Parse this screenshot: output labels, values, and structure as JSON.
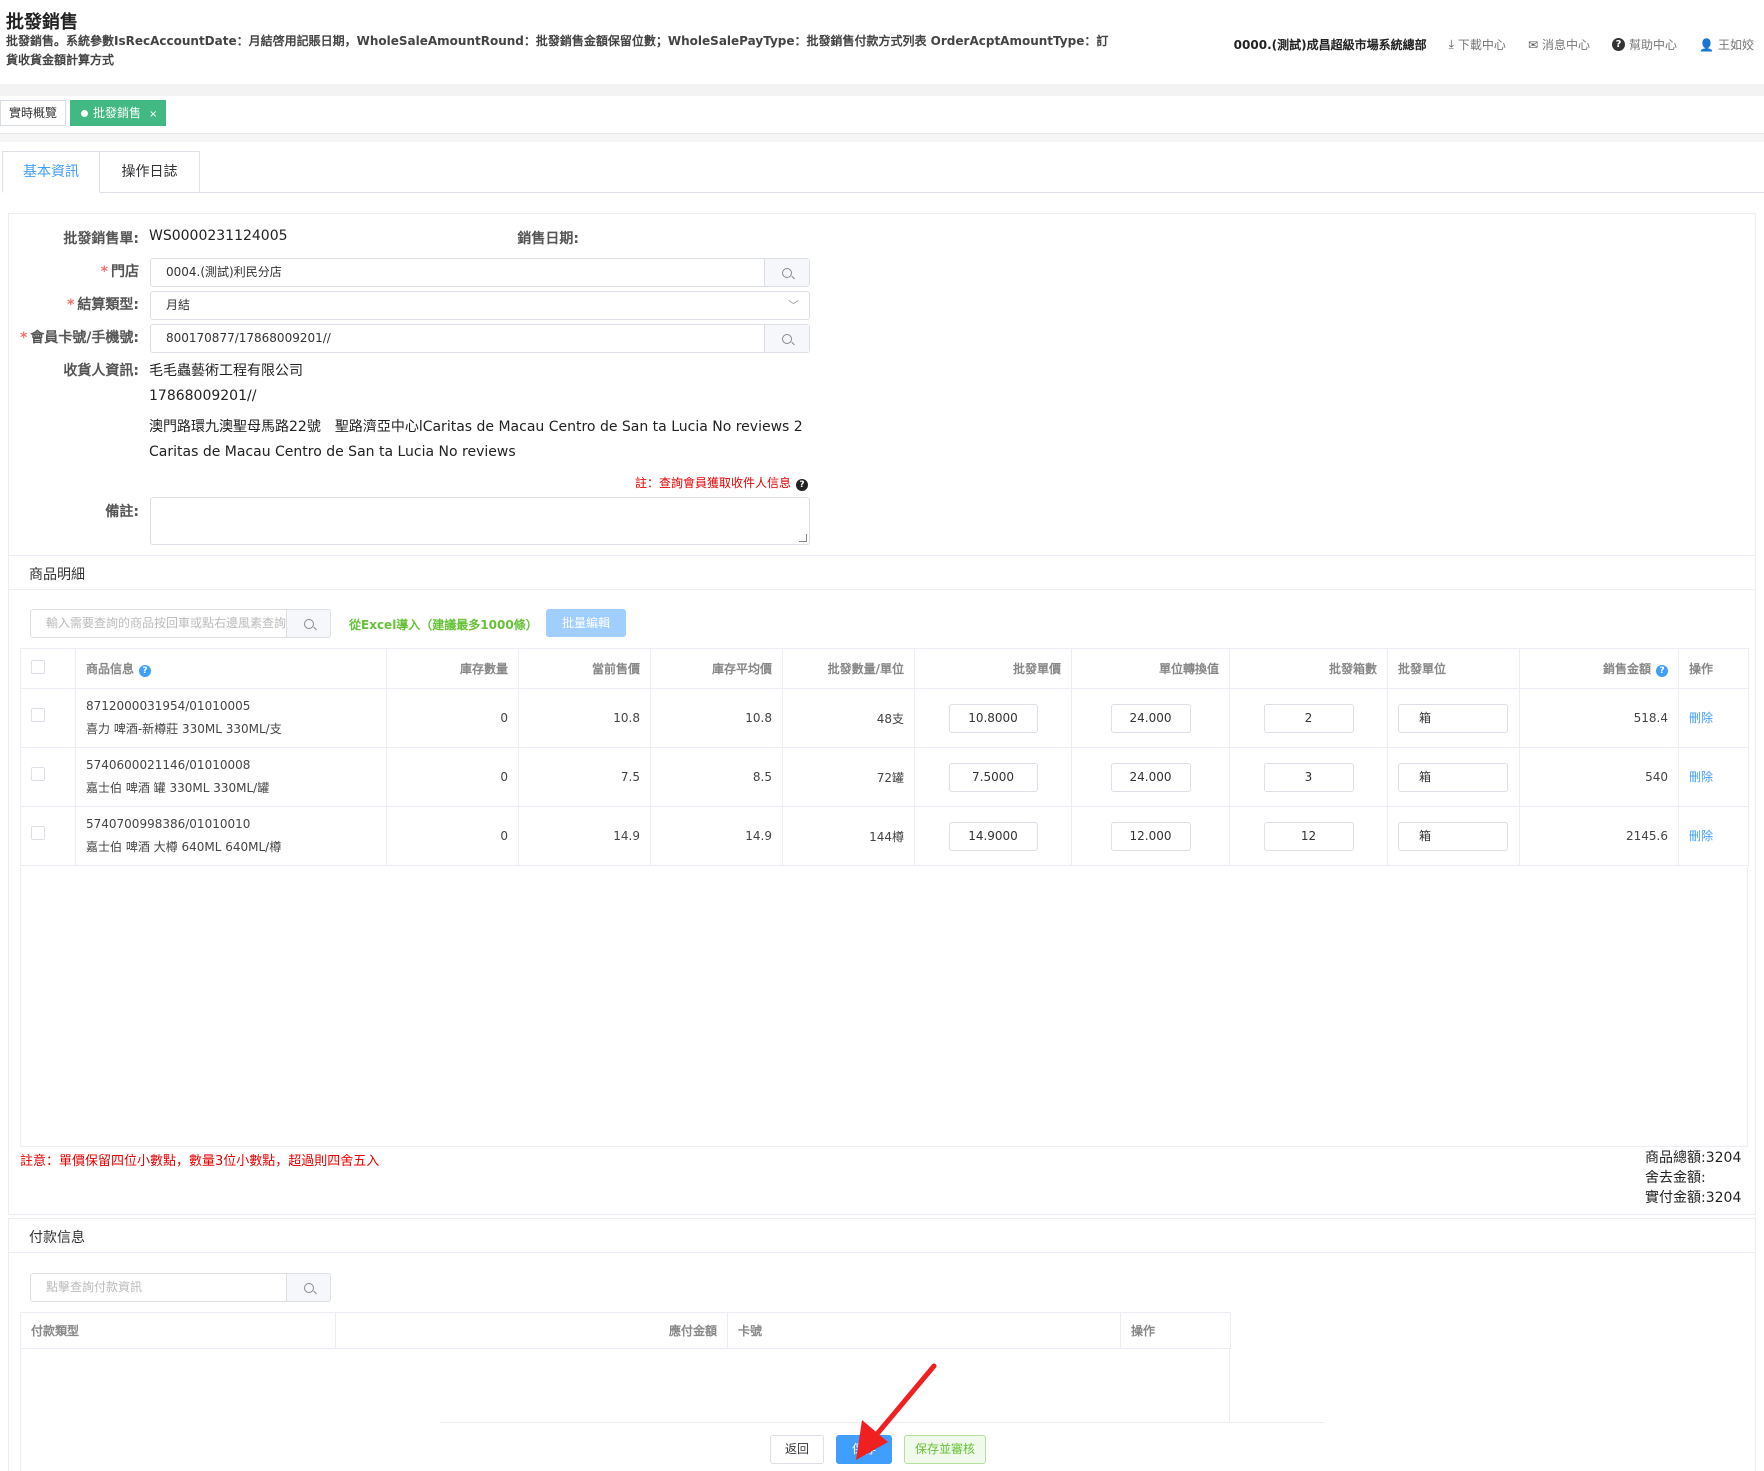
{
  "header": {
    "title": "批發銷售",
    "description": "批發銷售。系統參數IsRecAccountDate：月結啓用記賬日期，WholeSaleAmountRound：批發銷售金額保留位數；WholeSalePayType：批發銷售付款方式列表 OrderAcptAmountType：訂貨收貨金額計算方式",
    "org": "0000.(測試)成昌超級市場系統總部",
    "download": "下載中心",
    "messages": "消息中心",
    "help": "幫助中心",
    "user": "王如姣"
  },
  "tags": {
    "overview": "實時概覽",
    "current": "批發銷售",
    "close": "×"
  },
  "tabs": {
    "basic": "基本資訊",
    "log": "操作日誌"
  },
  "form": {
    "order_label": "批發銷售單:",
    "order_value": "WS0000231124005",
    "date_label": "銷售日期:",
    "store_label": "門店",
    "store_value": "0004.(測試)利民分店",
    "settle_label": "結算類型:",
    "settle_value": "月結",
    "member_label": "會員卡號/手機號:",
    "member_value": "800170877/17868009201//",
    "receiver_label": "收貨人資訊:",
    "receiver_name": "毛毛蟲藝術工程有限公司",
    "receiver_phone": "17868009201//",
    "receiver_addr1": "澳門路環九澳聖母馬路22號　聖路濟亞中心lCaritas de Macau Centro de San ta Lucia No reviews 2",
    "receiver_addr2": "Caritas de Macau Centro de San ta Lucia No reviews",
    "note_hint": "註：查詢會員獲取收件人信息",
    "remark_label": "備註:"
  },
  "goods": {
    "section_title": "商品明細",
    "search_placeholder": "輸入需要查詢的商品按回車或點右邊風素查詢",
    "excel_import": "從Excel導入（建議最多1000條）",
    "batch_edit": "批量編輯",
    "columns": [
      "商品信息",
      "庫存數量",
      "當前售價",
      "庫存平均價",
      "批發數量/單位",
      "批發單價",
      "單位轉換值",
      "批發箱數",
      "批發單位",
      "銷售金額",
      "操作"
    ],
    "rows": [
      {
        "code": "8712000031954/01010005",
        "name": "喜力 啤酒-新樽莊 330ML 330ML/支",
        "stock": "0",
        "price": "10.8",
        "avg": "10.8",
        "qty": "48支",
        "unit_price": "10.8000",
        "conv": "24.000",
        "boxes": "2",
        "unit": "箱",
        "amount": "518.4",
        "action": "刪除"
      },
      {
        "code": "5740600021146/01010008",
        "name": "嘉士伯 啤酒 罐 330ML 330ML/罐",
        "stock": "0",
        "price": "7.5",
        "avg": "8.5",
        "qty": "72罐",
        "unit_price": "7.5000",
        "conv": "24.000",
        "boxes": "3",
        "unit": "箱",
        "amount": "540",
        "action": "刪除"
      },
      {
        "code": "5740700998386/01010010",
        "name": "嘉士伯 啤酒 大樽 640ML 640ML/樽",
        "stock": "0",
        "price": "14.9",
        "avg": "14.9",
        "qty": "144樽",
        "unit_price": "14.9000",
        "conv": "12.000",
        "boxes": "12",
        "unit": "箱",
        "amount": "2145.6",
        "action": "刪除"
      }
    ],
    "warning": "註意：單價保留四位小數點，數量3位小數點，超過則四舍五入",
    "total_label": "商品總額:",
    "total_value": "3204",
    "discount_label": "舍去金額:",
    "discount_value": "",
    "paid_label": "實付金額:",
    "paid_value": "3204"
  },
  "payment": {
    "section_title": "付款信息",
    "search_placeholder": "點擊查詢付款資訊",
    "columns": [
      "付款類型",
      "應付金額",
      "卡號",
      "操作"
    ]
  },
  "footer": {
    "back": "返回",
    "save": "保存",
    "save_audit": "保存並審核"
  },
  "colors": {
    "primary": "#409eff",
    "success": "#67c23a",
    "danger": "#e60000",
    "tag_active": "#42b983"
  }
}
